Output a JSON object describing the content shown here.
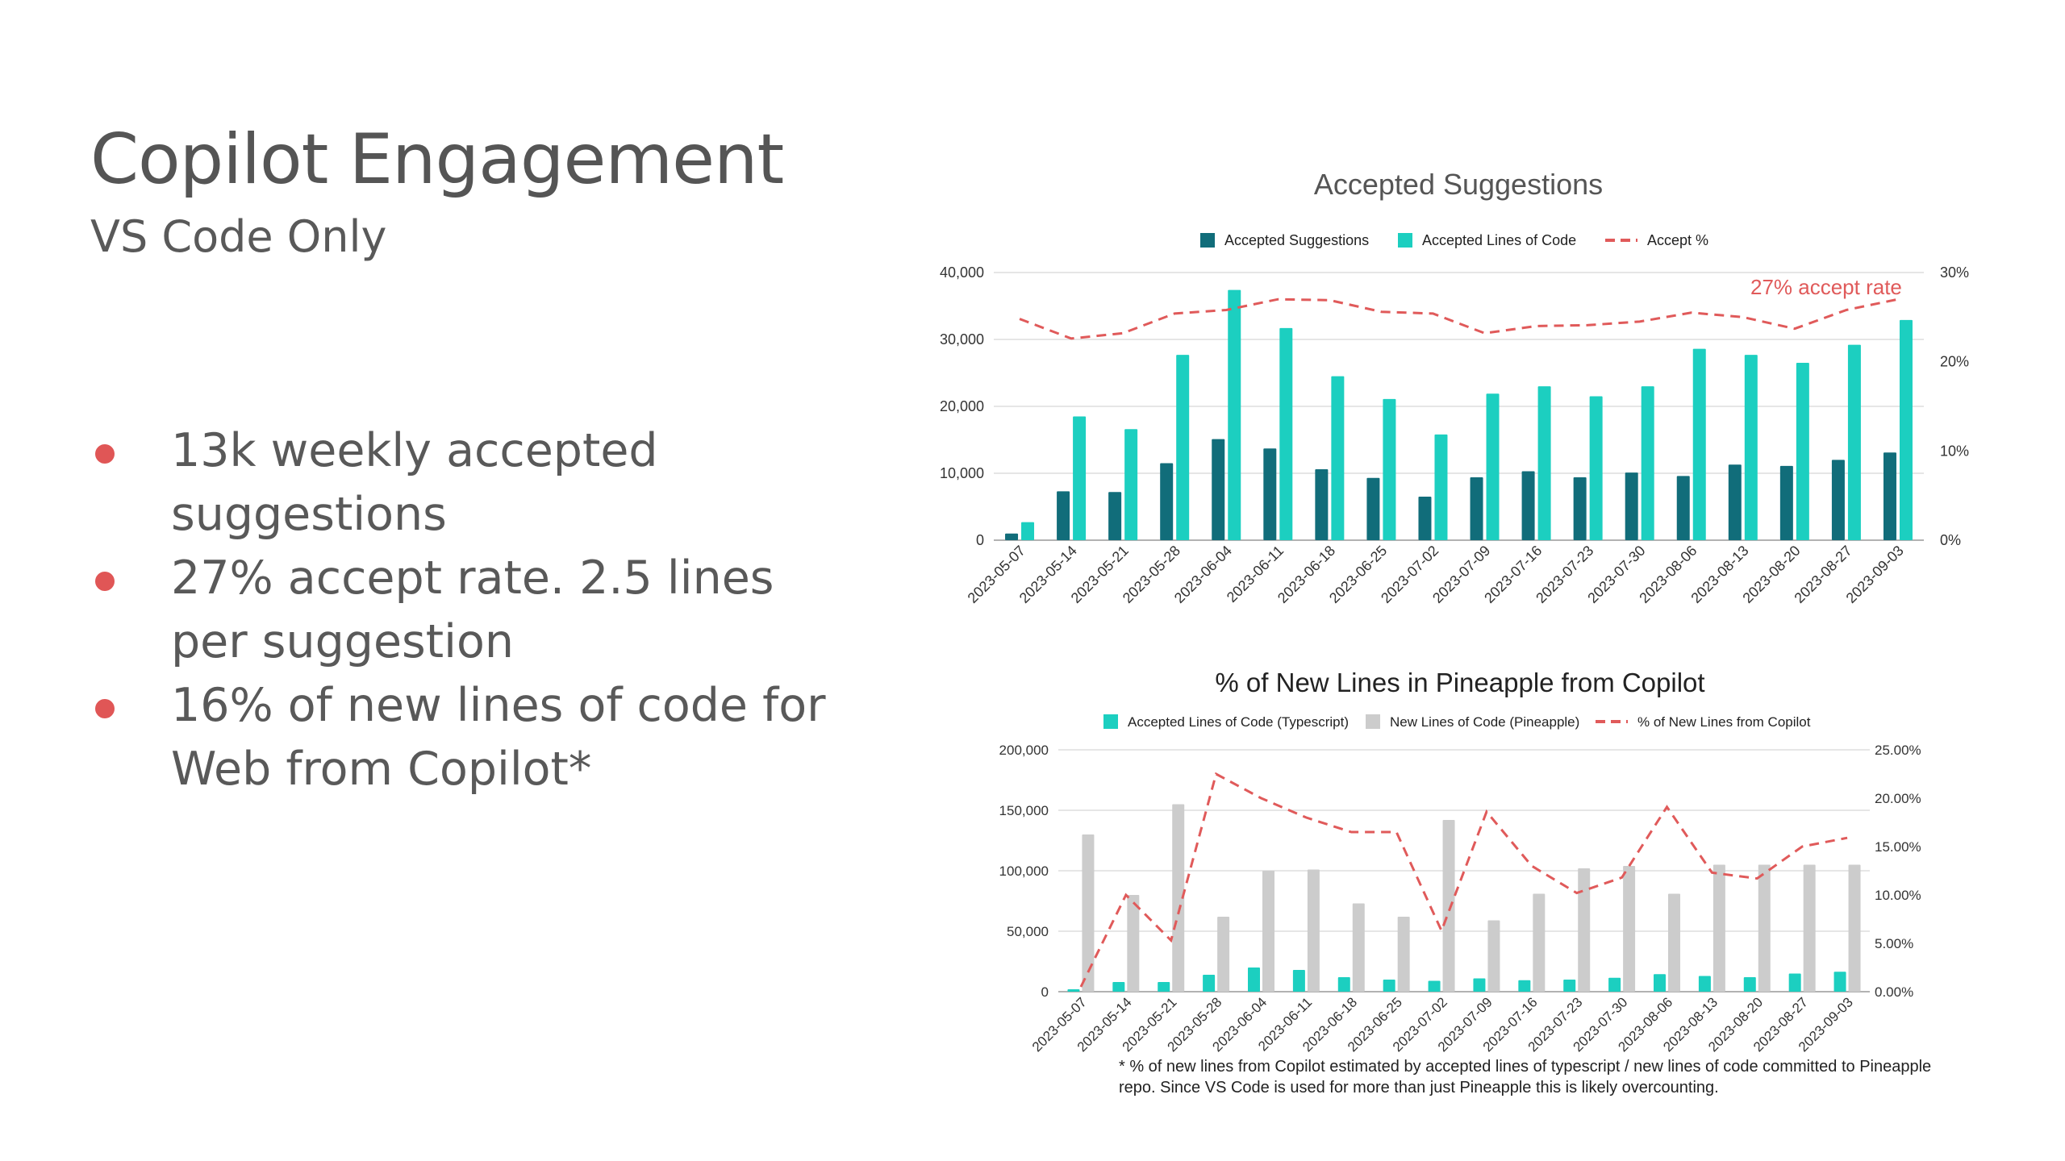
{
  "slide": {
    "title": "Copilot Engagement",
    "subtitle": "VS Code Only",
    "bullets": [
      "13k weekly accepted suggestions",
      "27% accept rate. 2.5 lines per suggestion",
      "16% of new lines of code for Web from Copilot*"
    ],
    "bullet_color": "#e05656",
    "footnote": "* % of new lines from Copilot estimated by accepted lines of typescript / new lines of code committed to Pineapple repo. Since VS Code is used for more than just Pineapple this is likely overcounting."
  },
  "chart_data": [
    {
      "type": "bar",
      "title": "Accepted Suggestions",
      "legend_position": "top",
      "annotation": "27% accept rate",
      "categories": [
        "2023-05-07",
        "2023-05-14",
        "2023-05-21",
        "2023-05-28",
        "2023-06-04",
        "2023-06-11",
        "2023-06-18",
        "2023-06-25",
        "2023-07-02",
        "2023-07-09",
        "2023-07-16",
        "2023-07-23",
        "2023-07-30",
        "2023-08-06",
        "2023-08-13",
        "2023-08-20",
        "2023-08-27",
        "2023-09-03"
      ],
      "y_ticks": [
        "0",
        "10,000",
        "20,000",
        "30,000",
        "40,000"
      ],
      "y2_ticks": [
        "0%",
        "10%",
        "20%",
        "30%"
      ],
      "ylim": [
        0,
        40000
      ],
      "y2lim": [
        0,
        30
      ],
      "grid": true,
      "series": [
        {
          "name": "Accepted Suggestions",
          "kind": "bar",
          "axis": "left",
          "color": "#116d7a",
          "values": [
            1000,
            7300,
            7200,
            11500,
            15100,
            13700,
            10600,
            9300,
            6500,
            9400,
            10300,
            9400,
            10100,
            9600,
            11300,
            11100,
            12000,
            13100
          ]
        },
        {
          "name": "Accepted Lines of Code",
          "kind": "bar",
          "axis": "left",
          "color": "#1ccfc0",
          "values": [
            2700,
            18500,
            16600,
            27700,
            37400,
            31700,
            24500,
            21100,
            15800,
            21900,
            23000,
            21500,
            23000,
            28600,
            27700,
            26500,
            29200,
            32900
          ]
        },
        {
          "name": "Accept %",
          "kind": "line",
          "axis": "right",
          "dashed": true,
          "color": "#e05a5a",
          "values": [
            24.8,
            22.6,
            23.2,
            25.4,
            25.8,
            27.0,
            26.9,
            25.6,
            25.4,
            23.2,
            24.0,
            24.1,
            24.5,
            25.5,
            25.0,
            23.7,
            25.8,
            27.0
          ]
        }
      ]
    },
    {
      "type": "bar",
      "title": "% of New Lines in Pineapple from Copilot",
      "legend_position": "top",
      "categories": [
        "2023-05-07",
        "2023-05-14",
        "2023-05-21",
        "2023-05-28",
        "2023-06-04",
        "2023-06-11",
        "2023-06-18",
        "2023-06-25",
        "2023-07-02",
        "2023-07-09",
        "2023-07-16",
        "2023-07-23",
        "2023-07-30",
        "2023-08-06",
        "2023-08-13",
        "2023-08-20",
        "2023-08-27",
        "2023-09-03"
      ],
      "y_ticks": [
        "0",
        "50,000",
        "100,000",
        "150,000",
        "200,000"
      ],
      "y2_ticks": [
        "0.00%",
        "5.00%",
        "10.00%",
        "15.00%",
        "20.00%",
        "25.00%"
      ],
      "ylim": [
        0,
        200000
      ],
      "y2lim": [
        0,
        25
      ],
      "grid": true,
      "series": [
        {
          "name": "Accepted Lines of Code (Typescript)",
          "kind": "bar",
          "axis": "left",
          "color": "#1ccfc0",
          "values": [
            2000,
            8000,
            8000,
            14000,
            20000,
            18000,
            12000,
            10000,
            9000,
            11000,
            9500,
            10000,
            11500,
            14500,
            13000,
            12000,
            15000,
            16500
          ]
        },
        {
          "name": "New Lines of Code (Pineapple)",
          "kind": "bar",
          "axis": "left",
          "color": "#cccccc",
          "values": [
            130000,
            80000,
            155000,
            62000,
            100000,
            101000,
            73000,
            62000,
            142000,
            59000,
            81000,
            102000,
            104000,
            81000,
            105000,
            105000,
            105000,
            105000
          ]
        },
        {
          "name": "% of New Lines from Copilot",
          "kind": "line",
          "axis": "right",
          "dashed": true,
          "color": "#e05a5a",
          "values": [
            0.5,
            10.0,
            5.3,
            22.5,
            20.0,
            18.0,
            16.5,
            16.5,
            6.3,
            18.6,
            13.0,
            10.2,
            11.8,
            19.1,
            12.3,
            11.7,
            15.0,
            15.9
          ]
        }
      ]
    }
  ]
}
